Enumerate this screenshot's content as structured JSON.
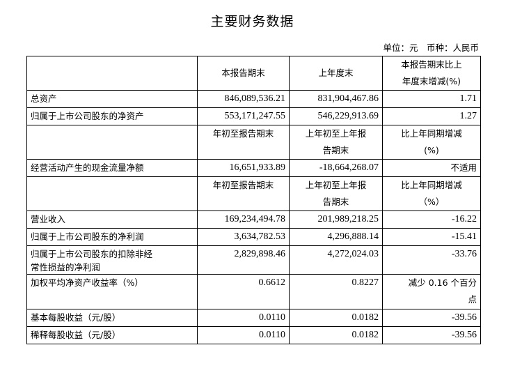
{
  "title": "主要财务数据",
  "unit": "单位：元　币种：人民币",
  "header1": {
    "c1": "本报告期末",
    "c2": "上年度末",
    "c3a": "本报告期末比上",
    "c3b": "年度末增减(%)"
  },
  "rows1": [
    {
      "label": "总资产",
      "v1": "846,089,536.21",
      "v2": "831,904,467.86",
      "v3": "1.71"
    },
    {
      "label": "归属于上市公司股东的净资产",
      "v1": "553,171,247.55",
      "v2": "546,229,913.69",
      "v3": "1.27"
    }
  ],
  "header2": {
    "c1": "年初至报告期末",
    "c2a": "上年初至上年报",
    "c2b": "告期末",
    "c3a": "比上年同期增减",
    "c3b": "(%)"
  },
  "row_cash": {
    "label": "经营活动产生的现金流量净额",
    "v1": "16,651,933.89",
    "v2": "-18,664,268.07",
    "v3": "不适用"
  },
  "header3": {
    "c1": "年初至报告期末",
    "c2a": "上年初至上年报",
    "c2b": "告期末",
    "c3a": "比上年同期增减",
    "c3b": "（%）"
  },
  "rows2": [
    {
      "label": "营业收入",
      "v1": "169,234,494.78",
      "v2": "201,989,218.25",
      "v3": "-16.22"
    },
    {
      "label": "归属于上市公司股东的净利润",
      "v1": "3,634,782.53",
      "v2": "4,296,888.14",
      "v3": "-15.41"
    },
    {
      "label_a": "归属于上市公司股东的扣除非经",
      "label_b": "常性损益的净利润",
      "v1": "2,829,898.46",
      "v2": "4,272,024.03",
      "v3": "-33.76"
    },
    {
      "label": "加权平均净资产收益率（%）",
      "v1": "0.6612",
      "v2": "0.8227",
      "v3a": "减少 0.16 个百分",
      "v3b": "点"
    },
    {
      "label": "基本每股收益（元/股）",
      "v1": "0.0110",
      "v2": "0.0182",
      "v3": "-39.56"
    },
    {
      "label": "稀释每股收益（元/股）",
      "v1": "0.0110",
      "v2": "0.0182",
      "v3": "-39.56"
    }
  ]
}
